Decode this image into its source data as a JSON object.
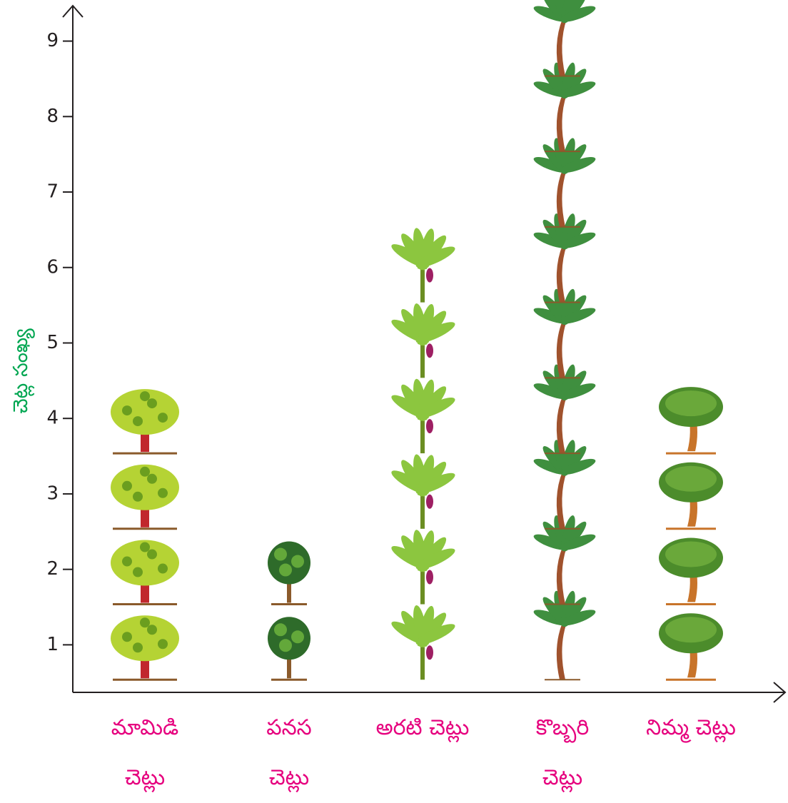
{
  "chart_data": {
    "type": "pictograph",
    "y_label": "చెట్ల సంఖ్య",
    "categories": [
      "మామిడి చెట్లు",
      "పనస చెట్లు",
      "అరటి చెట్లు",
      "కొబ్బరి చెట్లు",
      "నిమ్మ చెట్లు"
    ],
    "values": [
      4,
      2,
      6,
      9,
      4
    ],
    "ylim": [
      0.37,
      9.45
    ],
    "yticks": [
      1,
      2,
      3,
      4,
      5,
      6,
      7,
      8,
      9
    ]
  }
}
